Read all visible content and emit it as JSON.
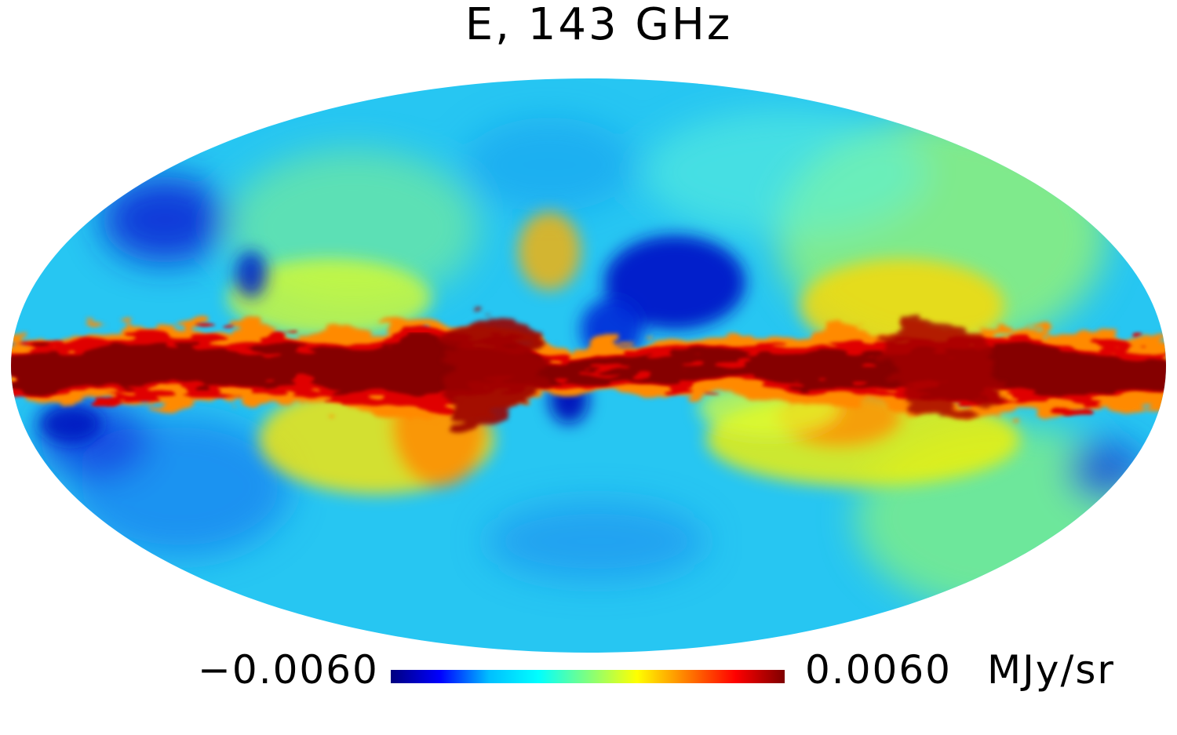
{
  "map": {
    "title": "E, 143 GHz",
    "projection": "mollweide",
    "coordinate_system": "galactic",
    "colormap": "jet",
    "colorbar": {
      "min_label": "−0.0060",
      "max_label": "0.0060",
      "unit": "MJy/sr",
      "min": -0.006,
      "max": 0.006,
      "stops": [
        "#00007f",
        "#0000ff",
        "#00bfff",
        "#00ffff",
        "#7fff7f",
        "#ffff00",
        "#ff7f00",
        "#ff0000",
        "#7f0000"
      ]
    }
  },
  "colors": {
    "background": "#ffffff",
    "text": "#000000",
    "sky_base": "#27c6f2",
    "galactic_plane": "#850000"
  }
}
